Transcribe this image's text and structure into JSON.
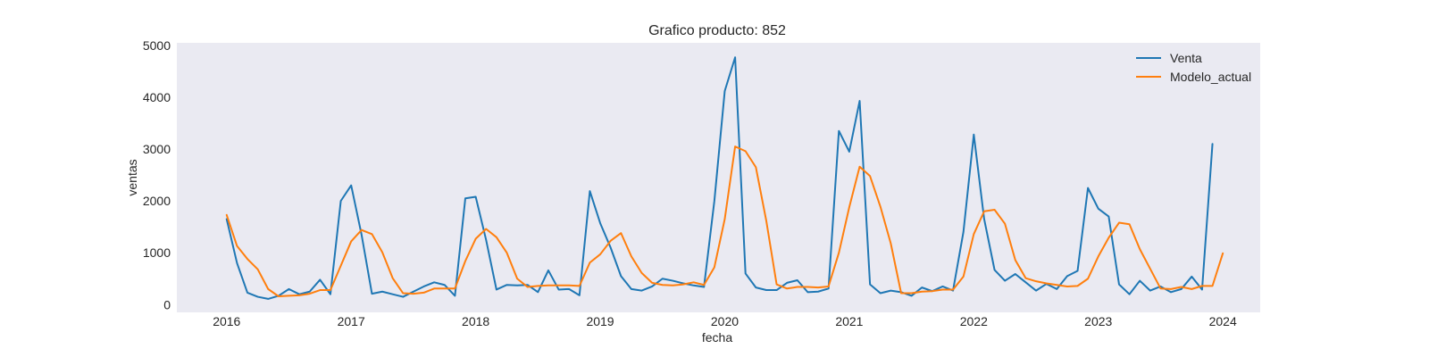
{
  "chart_data": {
    "type": "line",
    "title": "Grafico producto: 852",
    "xlabel": "fecha",
    "ylabel": "ventas",
    "xlim": [
      2015.6,
      2024.3
    ],
    "ylim": [
      -150,
      5050
    ],
    "xticks": [
      2016,
      2017,
      2018,
      2019,
      2020,
      2021,
      2022,
      2023,
      2024
    ],
    "yticks": [
      0,
      1000,
      2000,
      3000,
      4000,
      5000
    ],
    "grid": false,
    "legend_position": "top-right",
    "x_start": 2016.0,
    "x_step_months": 1,
    "series": [
      {
        "name": "Venta",
        "color": "#1f77b4",
        "values": [
          1650,
          800,
          230,
          150,
          110,
          170,
          300,
          200,
          250,
          480,
          200,
          2000,
          2300,
          1350,
          210,
          250,
          200,
          150,
          250,
          350,
          430,
          380,
          170,
          2050,
          2080,
          1250,
          290,
          380,
          370,
          380,
          240,
          660,
          290,
          300,
          180,
          2190,
          1570,
          1100,
          550,
          300,
          270,
          350,
          500,
          460,
          410,
          370,
          340,
          2000,
          4120,
          4770,
          600,
          330,
          280,
          280,
          420,
          470,
          240,
          250,
          310,
          3350,
          2950,
          3930,
          390,
          220,
          270,
          240,
          170,
          330,
          260,
          350,
          270,
          1400,
          3280,
          1650,
          670,
          460,
          590,
          430,
          270,
          400,
          300,
          550,
          650,
          2250,
          1850,
          1700,
          390,
          200,
          460,
          270,
          350,
          240,
          300,
          540,
          290,
          3100
        ]
      },
      {
        "name": "Modelo_actual",
        "color": "#ff7f0e",
        "values": [
          1730,
          1130,
          880,
          680,
          300,
          160,
          170,
          180,
          210,
          280,
          280,
          750,
          1220,
          1440,
          1360,
          1010,
          510,
          220,
          210,
          230,
          310,
          310,
          310,
          840,
          1270,
          1460,
          1300,
          1000,
          500,
          340,
          360,
          370,
          370,
          370,
          360,
          810,
          970,
          1230,
          1380,
          930,
          610,
          420,
          380,
          370,
          390,
          430,
          380,
          720,
          1650,
          3050,
          2960,
          2650,
          1620,
          390,
          310,
          340,
          340,
          330,
          350,
          1000,
          1880,
          2660,
          2480,
          1890,
          1180,
          220,
          220,
          250,
          260,
          290,
          290,
          540,
          1360,
          1800,
          1830,
          1560,
          860,
          510,
          450,
          410,
          380,
          350,
          360,
          500,
          930,
          1290,
          1580,
          1550,
          1070,
          690,
          310,
          300,
          340,
          300,
          360,
          360,
          990
        ]
      }
    ]
  }
}
